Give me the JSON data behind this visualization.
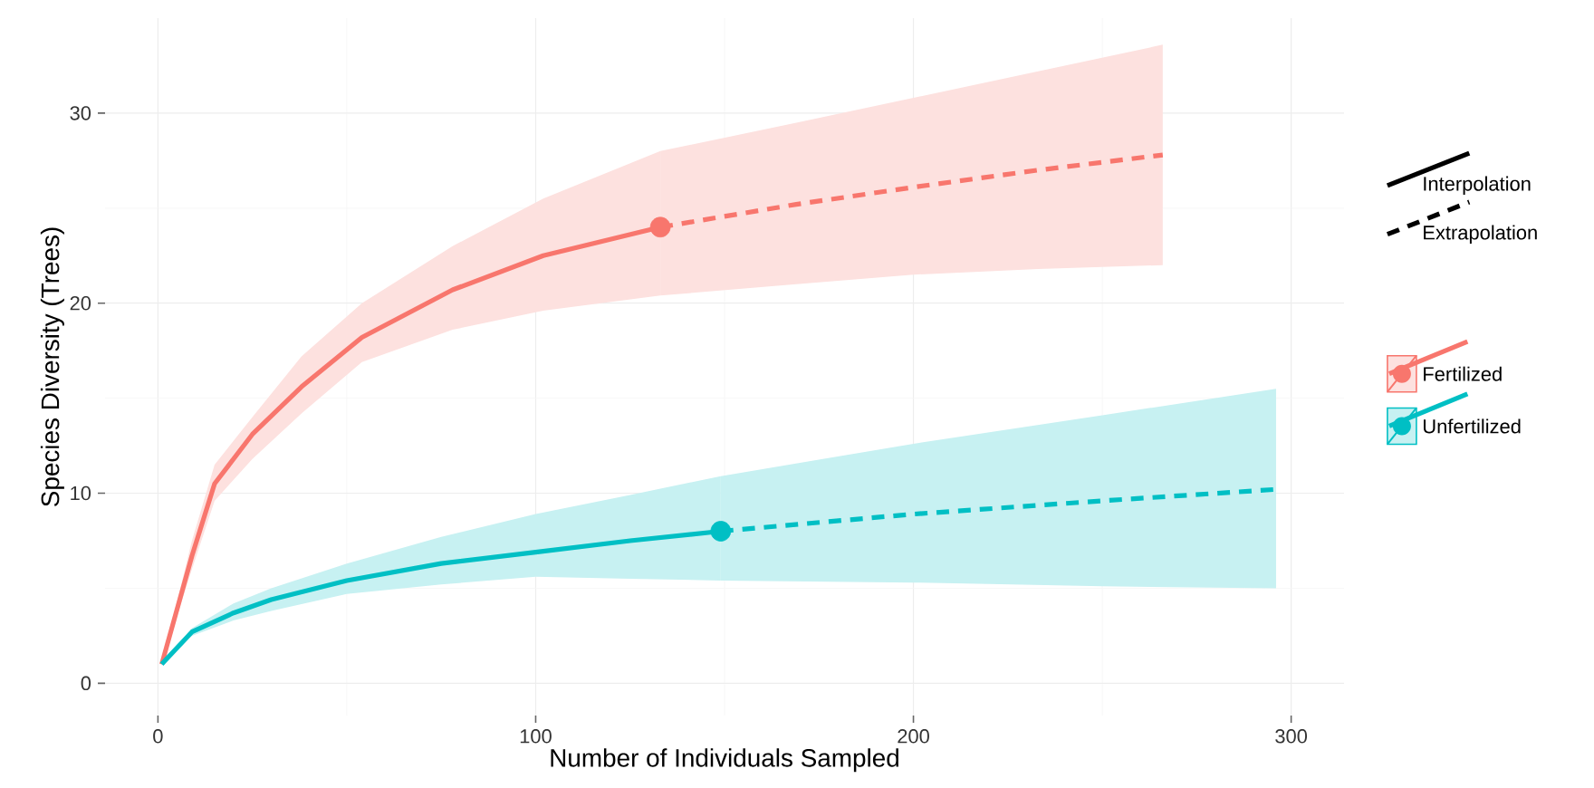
{
  "chart_data": {
    "type": "line",
    "xlabel": "Number of Individuals Sampled",
    "ylabel": "Species Diversity (Trees)",
    "xlim": [
      -14,
      314
    ],
    "ylim": [
      -1.7,
      35
    ],
    "xticks": [
      0,
      100,
      200,
      300
    ],
    "yticks": [
      0,
      10,
      20,
      30
    ],
    "grid": true,
    "legend": "right",
    "annotations": [
      "Interpolation",
      "Extrapolation"
    ],
    "series": [
      {
        "name": "Fertilized",
        "color": "#f8766d",
        "line_style": "solid",
        "x": [
          1,
          9,
          15,
          25,
          38,
          54,
          78,
          102,
          133
        ],
        "values": [
          1,
          6.7,
          10.5,
          13.1,
          15.6,
          18.2,
          20.7,
          22.5,
          24.0
        ],
        "upper": [
          1,
          7.5,
          11.5,
          14.0,
          17.2,
          20.0,
          23.0,
          25.5,
          28.0
        ],
        "lower": [
          1,
          6.0,
          9.6,
          11.8,
          14.2,
          16.9,
          18.6,
          19.6,
          20.4
        ]
      },
      {
        "color": "#f8766d",
        "line_style": "dashed",
        "x": [
          133,
          169,
          200,
          233,
          266
        ],
        "values": [
          24.0,
          25.2,
          26.1,
          27.0,
          27.8
        ],
        "upper": [
          28.0,
          29.5,
          30.8,
          32.2,
          33.6
        ],
        "lower": [
          20.4,
          21.0,
          21.5,
          21.8,
          22.0
        ]
      },
      {
        "name": "Unfertilized",
        "color": "#00bfc4",
        "line_style": "solid",
        "x": [
          1,
          9,
          20,
          30,
          50,
          75,
          100,
          125,
          149
        ],
        "values": [
          1,
          2.7,
          3.7,
          4.4,
          5.4,
          6.3,
          6.9,
          7.5,
          8.0
        ],
        "upper": [
          1,
          2.9,
          4.2,
          5.0,
          6.3,
          7.7,
          8.9,
          9.9,
          10.9
        ],
        "lower": [
          1,
          2.5,
          3.3,
          3.8,
          4.7,
          5.2,
          5.6,
          5.5,
          5.4
        ]
      },
      {
        "color": "#00bfc4",
        "line_style": "dashed",
        "x": [
          149,
          200,
          250,
          296
        ],
        "values": [
          8.0,
          8.9,
          9.6,
          10.2
        ],
        "upper": [
          10.9,
          12.6,
          14.1,
          15.5
        ],
        "lower": [
          5.4,
          5.3,
          5.1,
          5.0
        ]
      },
      {
        "type": "scatter",
        "marker": "circle",
        "x": [
          133,
          149
        ],
        "values": [
          24.0,
          8.0
        ],
        "colors": [
          "#f8766d",
          "#00bfc4"
        ]
      }
    ]
  }
}
